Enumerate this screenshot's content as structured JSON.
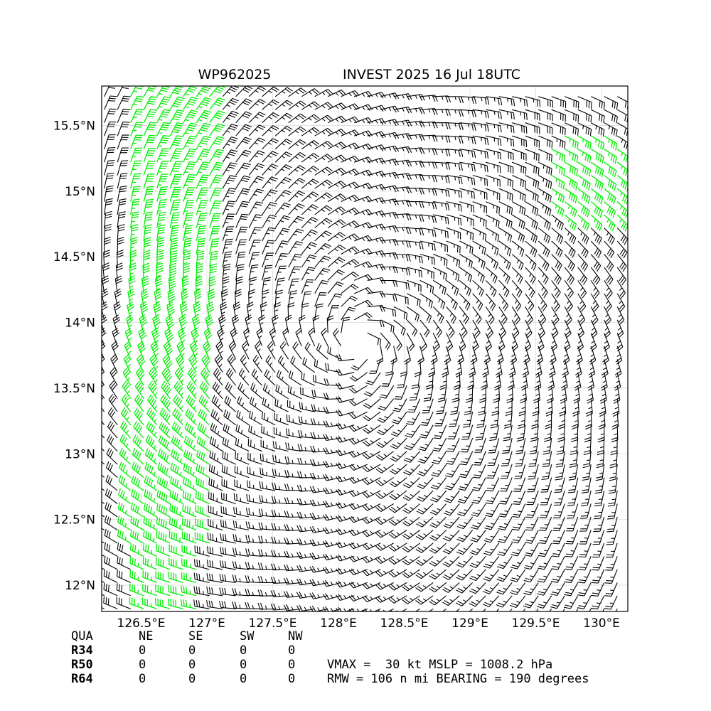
{
  "title_left": "WP962025",
  "title_right": "INVEST 2025 16 Jul 18UTC",
  "map": {
    "xlim": [
      126.2,
      130.2
    ],
    "ylim": [
      11.8,
      15.8
    ],
    "xticks": [
      {
        "value": 126.5,
        "label": "126.5°E"
      },
      {
        "value": 127,
        "label": "127°E"
      },
      {
        "value": 127.5,
        "label": "127.5°E"
      },
      {
        "value": 128,
        "label": "128°E"
      },
      {
        "value": 128.5,
        "label": "128.5°E"
      },
      {
        "value": 129,
        "label": "129°E"
      },
      {
        "value": 129.5,
        "label": "129.5°E"
      },
      {
        "value": 130,
        "label": "130°E"
      }
    ],
    "yticks": [
      {
        "value": 12,
        "label": "12°N"
      },
      {
        "value": 12.5,
        "label": "12.5°N"
      },
      {
        "value": 13,
        "label": "13°N"
      },
      {
        "value": 13.5,
        "label": "13.5°N"
      },
      {
        "value": 14,
        "label": "14°N"
      },
      {
        "value": 14.5,
        "label": "14.5°N"
      },
      {
        "value": 15,
        "label": "15°N"
      },
      {
        "value": 15.5,
        "label": "15.5°N"
      }
    ],
    "grid": true
  },
  "radii_table": {
    "header": [
      "QUA",
      "NE",
      "SE",
      "SW",
      "NW"
    ],
    "rows": [
      [
        "R34",
        0,
        0,
        0,
        0
      ],
      [
        "R50",
        0,
        0,
        0,
        0
      ],
      [
        "R64",
        0,
        0,
        0,
        0
      ]
    ]
  },
  "info": [
    "VMAX =  30 kt MSLP = 1008.2 hPa",
    "RMW = 106 n mi BEARING = 190 degrees"
  ]
}
